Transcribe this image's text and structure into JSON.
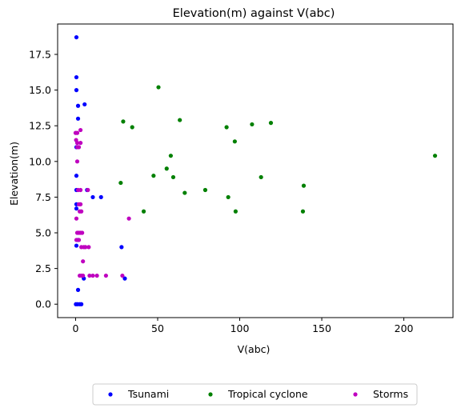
{
  "chart_data": {
    "type": "scatter",
    "title": "Elevation(m) against V(abc)",
    "xlabel": "V(abc)",
    "ylabel": "Elevation(m)",
    "xlim": [
      -10.95,
      229.95
    ],
    "ylim": [
      -0.94,
      19.63
    ],
    "xticks": [
      0,
      50,
      100,
      150,
      200
    ],
    "xtick_labels": [
      "0",
      "50",
      "100",
      "150",
      "200"
    ],
    "yticks": [
      0.0,
      2.5,
      5.0,
      7.5,
      10.0,
      12.5,
      15.0,
      17.5
    ],
    "ytick_labels": [
      "0.0",
      "2.5",
      "5.0",
      "7.5",
      "10.0",
      "12.5",
      "15.0",
      "17.5"
    ],
    "grid": false,
    "legend_position": "bottom-center, below axes",
    "series": [
      {
        "name": "Tsunami",
        "color": "#0000ff",
        "points": [
          [
            0.5,
            18.7
          ],
          [
            0.5,
            15.9
          ],
          [
            0.5,
            15.0
          ],
          [
            1.5,
            13.9
          ],
          [
            5.5,
            14.0
          ],
          [
            1.5,
            13.0
          ],
          [
            0.5,
            11.0
          ],
          [
            0.5,
            9.0
          ],
          [
            0.5,
            8.0
          ],
          [
            0.5,
            7.0
          ],
          [
            0.5,
            6.7
          ],
          [
            0.5,
            4.1
          ],
          [
            1.5,
            4.5
          ],
          [
            7.0,
            8.0
          ],
          [
            10.5,
            7.5
          ],
          [
            15.5,
            7.5
          ],
          [
            1.5,
            1.0
          ],
          [
            5.0,
            1.8
          ],
          [
            28.0,
            4.0
          ],
          [
            30.0,
            1.8
          ],
          [
            0.2,
            0.0
          ],
          [
            1.2,
            0.0
          ],
          [
            2.5,
            0.0
          ],
          [
            3.5,
            0.0
          ]
        ]
      },
      {
        "name": "Tropical cyclone",
        "color": "#008000",
        "points": [
          [
            50.5,
            15.2
          ],
          [
            29.0,
            12.8
          ],
          [
            34.5,
            12.4
          ],
          [
            63.5,
            12.9
          ],
          [
            92.0,
            12.4
          ],
          [
            107.5,
            12.6
          ],
          [
            119.0,
            12.7
          ],
          [
            97.0,
            11.4
          ],
          [
            58.0,
            10.4
          ],
          [
            219.0,
            10.4
          ],
          [
            55.5,
            9.5
          ],
          [
            47.5,
            9.0
          ],
          [
            59.5,
            8.9
          ],
          [
            113.0,
            8.9
          ],
          [
            27.5,
            8.5
          ],
          [
            139.0,
            8.3
          ],
          [
            66.5,
            7.8
          ],
          [
            79.0,
            8.0
          ],
          [
            93.0,
            7.5
          ],
          [
            41.5,
            6.5
          ],
          [
            97.5,
            6.5
          ],
          [
            138.5,
            6.5
          ]
        ]
      },
      {
        "name": "Storms",
        "color": "#bf00bf",
        "points": [
          [
            0.0,
            12.0
          ],
          [
            1.0,
            12.0
          ],
          [
            3.0,
            12.2
          ],
          [
            0.3,
            11.5
          ],
          [
            1.0,
            11.3
          ],
          [
            3.0,
            11.3
          ],
          [
            1.0,
            11.0
          ],
          [
            2.0,
            11.0
          ],
          [
            1.0,
            10.0
          ],
          [
            1.5,
            8.0
          ],
          [
            3.0,
            8.0
          ],
          [
            7.5,
            8.0
          ],
          [
            2.0,
            7.0
          ],
          [
            3.0,
            7.0
          ],
          [
            2.5,
            6.5
          ],
          [
            3.5,
            6.5
          ],
          [
            0.5,
            6.0
          ],
          [
            32.5,
            6.0
          ],
          [
            1.0,
            5.0
          ],
          [
            2.0,
            5.0
          ],
          [
            3.0,
            5.0
          ],
          [
            4.0,
            5.0
          ],
          [
            0.5,
            4.5
          ],
          [
            2.0,
            4.5
          ],
          [
            3.5,
            4.0
          ],
          [
            5.0,
            4.0
          ],
          [
            6.0,
            4.0
          ],
          [
            8.0,
            4.0
          ],
          [
            4.5,
            3.0
          ],
          [
            2.5,
            2.0
          ],
          [
            3.5,
            2.0
          ],
          [
            4.5,
            2.0
          ],
          [
            8.5,
            2.0
          ],
          [
            10.5,
            2.0
          ],
          [
            13.0,
            2.0
          ],
          [
            18.5,
            2.0
          ],
          [
            28.5,
            2.0
          ]
        ]
      }
    ]
  }
}
